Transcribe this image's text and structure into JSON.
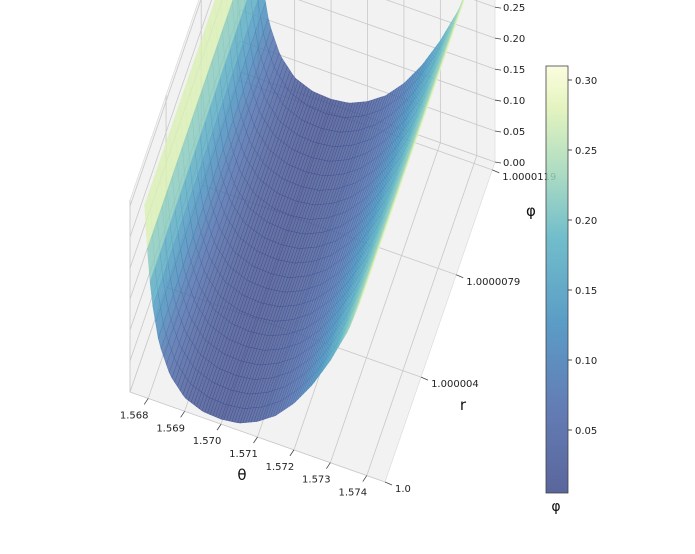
{
  "chart_data": {
    "type": "surface3d",
    "title": "",
    "xlabel": "θ",
    "ylabel": "r",
    "zlabel": "φ",
    "x_ticks": [
      "1.568",
      "1.569",
      "1.570",
      "1.571",
      "1.572",
      "1.573",
      "1.574"
    ],
    "x_tick_values": [
      1.568,
      1.569,
      1.57,
      1.571,
      1.572,
      1.573,
      1.574
    ],
    "y_ticks": [
      "1.0",
      "1.000004",
      "1.0000079",
      "1.0000119"
    ],
    "y_tick_values": [
      1.0,
      1.000004,
      1.0000079,
      1.0000119
    ],
    "z_ticks": [
      "0.00",
      "0.05",
      "0.10",
      "0.15",
      "0.20",
      "0.25",
      "0.30"
    ],
    "z_tick_values": [
      0.0,
      0.05,
      0.1,
      0.15,
      0.2,
      0.25,
      0.3
    ],
    "xlim": [
      1.5675,
      1.5745
    ],
    "ylim": [
      1.0,
      1.0000122
    ],
    "zlim": [
      0.0,
      0.31
    ],
    "grid": true,
    "colormap": "YlGnBu_r",
    "surface_alpha": 0.7,
    "colorbar": {
      "label": "φ",
      "ticks": [
        "0.05",
        "0.10",
        "0.15",
        "0.20",
        "0.25",
        "0.30"
      ],
      "tick_values": [
        0.05,
        0.1,
        0.15,
        0.2,
        0.25,
        0.3
      ],
      "range": [
        0.005,
        0.31
      ],
      "placement": "right"
    },
    "surface_profile": {
      "theta": [
        1.5679,
        1.568,
        1.5681,
        1.5683,
        1.5686,
        1.569,
        1.5695,
        1.57,
        1.5705,
        1.571,
        1.5715,
        1.572,
        1.5725,
        1.573,
        1.5735,
        1.5739
      ],
      "phi": [
        0.31,
        0.22,
        0.16,
        0.095,
        0.05,
        0.022,
        0.01,
        0.008,
        0.012,
        0.025,
        0.045,
        0.075,
        0.115,
        0.165,
        0.225,
        0.29
      ]
    }
  }
}
